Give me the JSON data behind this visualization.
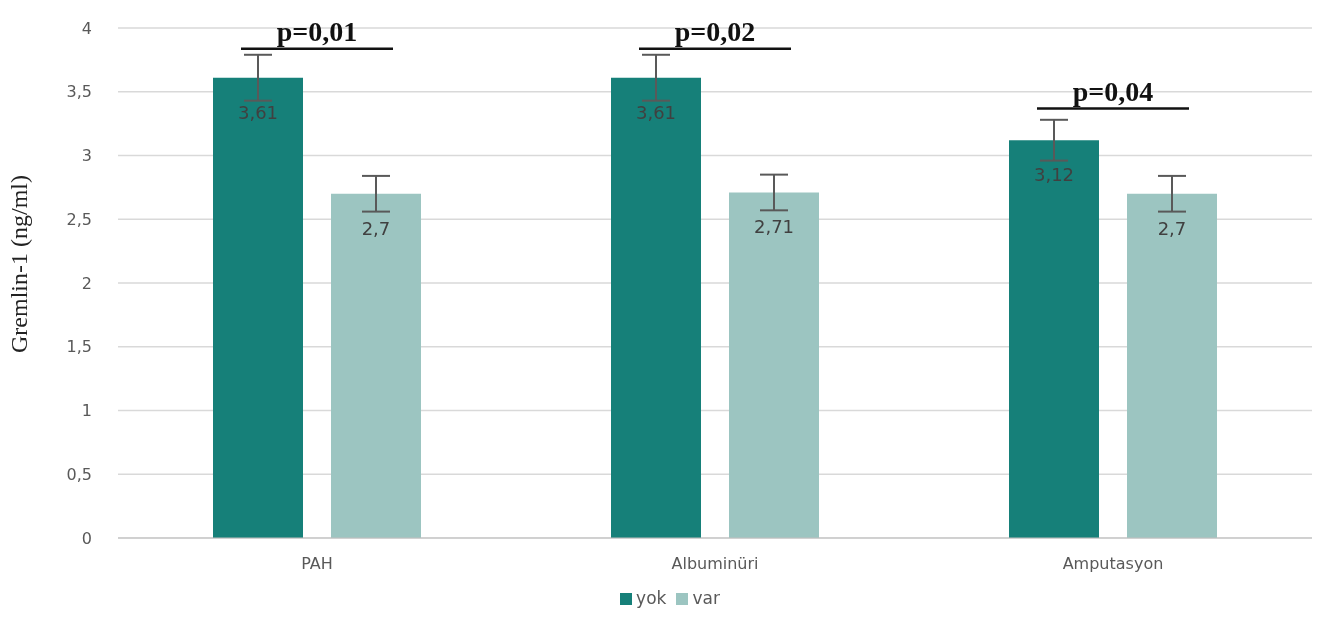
{
  "chart_data": {
    "type": "bar",
    "ylabel": "Gremlin-1 (ng/ml)",
    "categories": [
      "PAH",
      "Albuminüri",
      "Amputasyon"
    ],
    "series": [
      {
        "name": "yok",
        "color": "#168079",
        "values": [
          3.61,
          3.61,
          3.12
        ],
        "errors": [
          0.18,
          0.18,
          0.16
        ],
        "value_labels": [
          "3,61",
          "3,61",
          "3,12"
        ]
      },
      {
        "name": "var",
        "color": "#9cc5c1",
        "values": [
          2.7,
          2.71,
          2.7
        ],
        "errors": [
          0.14,
          0.14,
          0.14
        ],
        "value_labels": [
          "2,7",
          "2,71",
          "2,7"
        ]
      }
    ],
    "ylim": [
      0,
      4
    ],
    "yticks": [
      0,
      {
        "value": 0.5,
        "label": "0,5"
      },
      1,
      {
        "value": 1.5,
        "label": "1,5"
      },
      2,
      {
        "value": 2.5,
        "label": "2,5"
      },
      3,
      {
        "value": 3.5,
        "label": "3,5"
      },
      4
    ],
    "grid": "y",
    "legend": "bottom",
    "annotations": [
      "p=0,01",
      "p=0,02",
      "p=0,04"
    ]
  }
}
